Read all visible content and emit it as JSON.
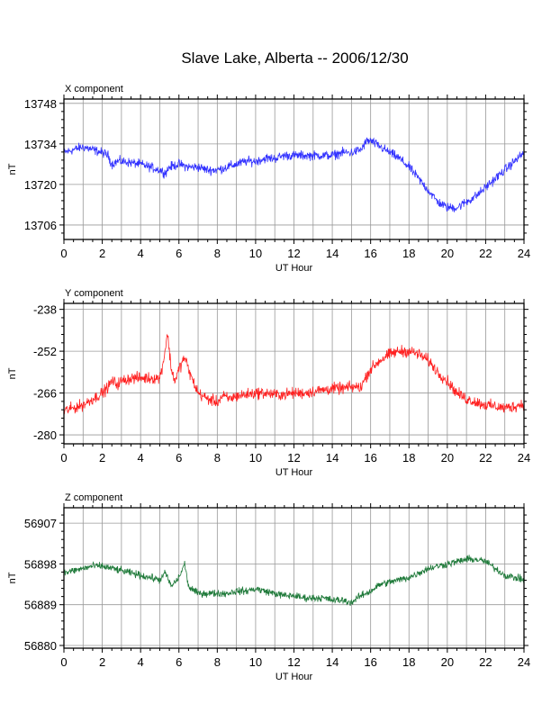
{
  "figure": {
    "title": "Slave Lake, Alberta -- 2006/12/30"
  },
  "colors": {
    "x": "#3232ff",
    "y": "#ff2020",
    "z": "#1f7a3a",
    "grid": "#999999",
    "frame": "#000000"
  },
  "chart_data": [
    {
      "type": "line",
      "title": "X component",
      "xlabel": "UT Hour",
      "ylabel": "nT",
      "xlim": [
        0,
        24
      ],
      "ylim": [
        13701,
        13749.5
      ],
      "xticks": [
        0,
        2,
        4,
        6,
        8,
        10,
        12,
        14,
        16,
        18,
        20,
        22,
        24
      ],
      "yticks": [
        13706,
        13720,
        13734,
        13748
      ],
      "grid": true,
      "series": [
        {
          "color": "#3232ff",
          "noise": 1.0,
          "x": [
            0,
            0.5,
            1.0,
            1.5,
            2.0,
            2.3,
            2.5,
            2.8,
            3.0,
            3.5,
            4.0,
            4.5,
            5.0,
            5.3,
            5.5,
            6.0,
            6.5,
            7.0,
            7.5,
            8.0,
            8.5,
            9.0,
            9.5,
            10.0,
            10.5,
            11.0,
            11.5,
            12.0,
            12.5,
            13.0,
            13.5,
            14.0,
            14.5,
            15.0,
            15.5,
            15.8,
            16.0,
            16.5,
            17.0,
            17.5,
            18.0,
            18.5,
            19.0,
            19.5,
            20.0,
            20.5,
            21.0,
            21.5,
            22.0,
            22.5,
            23.0,
            23.5,
            24.0
          ],
          "y": [
            13731,
            13732,
            13733,
            13732,
            13731,
            13730,
            13727,
            13728,
            13728,
            13727.5,
            13727,
            13726,
            13725,
            13724,
            13726,
            13727,
            13726,
            13726,
            13725,
            13725,
            13726,
            13727,
            13728,
            13728,
            13729,
            13729,
            13730,
            13730,
            13730,
            13730,
            13730,
            13730,
            13731,
            13731,
            13732,
            13735,
            13735,
            13733,
            13731,
            13729,
            13726,
            13722,
            13718,
            13714,
            13712,
            13712,
            13714,
            13716,
            13719,
            13722,
            13725,
            13728,
            13731
          ]
        }
      ]
    },
    {
      "type": "line",
      "title": "Y component",
      "xlabel": "UT Hour",
      "ylabel": "nT",
      "xlim": [
        0,
        24
      ],
      "ylim": [
        -283,
        -236
      ],
      "xticks": [
        0,
        2,
        4,
        6,
        8,
        10,
        12,
        14,
        16,
        18,
        20,
        22,
        24
      ],
      "yticks": [
        -238,
        -252,
        -266,
        -280
      ],
      "grid": true,
      "series": [
        {
          "color": "#ff2020",
          "noise": 1.2,
          "x": [
            0,
            0.5,
            1.0,
            1.5,
            2.0,
            2.3,
            2.5,
            2.8,
            3.0,
            3.5,
            4.0,
            4.5,
            5.0,
            5.2,
            5.4,
            5.6,
            5.8,
            6.0,
            6.3,
            6.6,
            7.0,
            7.5,
            8.0,
            8.3,
            8.6,
            9.0,
            9.5,
            10.0,
            10.5,
            11.0,
            11.5,
            12.0,
            12.5,
            13.0,
            13.5,
            14.0,
            14.5,
            15.0,
            15.5,
            15.8,
            16.0,
            16.5,
            17.0,
            17.5,
            18.0,
            18.5,
            19.0,
            19.5,
            20.0,
            20.5,
            21.0,
            21.5,
            22.0,
            22.5,
            23.0,
            23.5,
            24.0
          ],
          "y": [
            -272,
            -271,
            -270,
            -268,
            -266,
            -264,
            -262,
            -263,
            -262,
            -261,
            -261,
            -261,
            -261,
            -255,
            -246,
            -258,
            -262,
            -258,
            -254,
            -260,
            -266,
            -268,
            -269,
            -267,
            -268,
            -267,
            -266.5,
            -266,
            -266,
            -266.5,
            -266.5,
            -266,
            -266,
            -265.5,
            -265,
            -264.5,
            -264.5,
            -264,
            -264,
            -260,
            -258,
            -255,
            -253,
            -252,
            -252,
            -253,
            -255,
            -259,
            -262,
            -266,
            -268,
            -269,
            -270,
            -270.5,
            -271,
            -270.5,
            -269.5
          ]
        }
      ]
    },
    {
      "type": "line",
      "title": "Z component",
      "xlabel": "UT Hour",
      "ylabel": "nT",
      "xlim": [
        0,
        24
      ],
      "ylim": [
        56879.4,
        56910.4
      ],
      "xticks": [
        0,
        2,
        4,
        6,
        8,
        10,
        12,
        14,
        16,
        18,
        20,
        22,
        24
      ],
      "yticks": [
        56880,
        56889,
        56898,
        56907
      ],
      "grid": true,
      "series": [
        {
          "color": "#1f7a3a",
          "noise": 0.5,
          "x": [
            0,
            0.5,
            1.0,
            1.5,
            2.0,
            2.5,
            3.0,
            3.5,
            4.0,
            4.5,
            5.0,
            5.3,
            5.6,
            6.0,
            6.3,
            6.5,
            6.8,
            7.0,
            7.5,
            8.0,
            8.5,
            9.0,
            9.5,
            10.0,
            10.5,
            11.0,
            11.5,
            12.0,
            12.5,
            13.0,
            13.5,
            14.0,
            14.5,
            15.0,
            15.5,
            16.0,
            16.5,
            17.0,
            17.5,
            18.0,
            18.5,
            19.0,
            19.5,
            20.0,
            20.5,
            21.0,
            21.5,
            22.0,
            22.5,
            23.0,
            23.5,
            24.0
          ],
          "y": [
            56896,
            56896.5,
            56897,
            56897.5,
            56897.5,
            56897,
            56896.5,
            56896,
            56895.5,
            56895,
            56894.5,
            56896,
            56893,
            56895,
            56898,
            56893,
            56892,
            56891.5,
            56891.5,
            56891.5,
            56891.5,
            56892,
            56892,
            56892.5,
            56892,
            56891.5,
            56891,
            56891,
            56890.5,
            56890.5,
            56890.5,
            56890,
            56890,
            56889.5,
            56891,
            56892,
            56893.5,
            56894,
            56894.5,
            56895,
            56896,
            56897,
            56897.5,
            56898,
            56898.5,
            56899,
            56899,
            56898.5,
            56897,
            56895.5,
            56895,
            56894.5
          ]
        }
      ]
    }
  ]
}
